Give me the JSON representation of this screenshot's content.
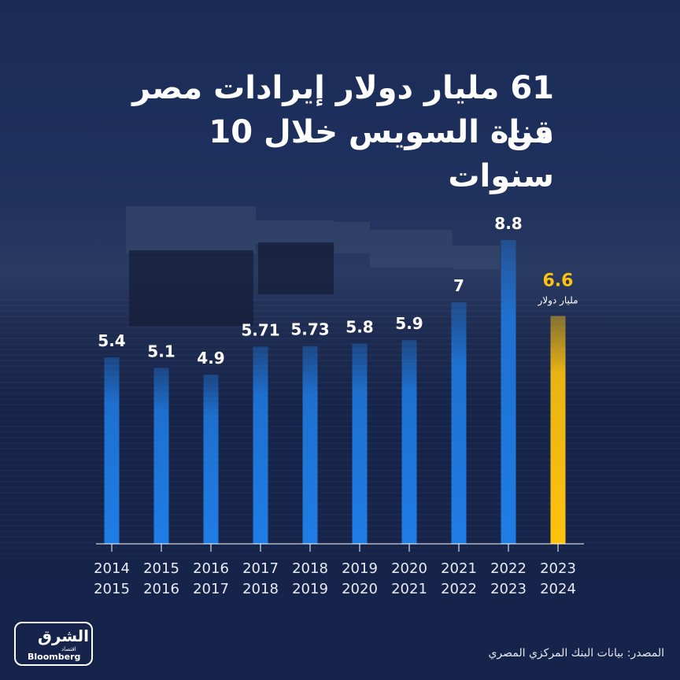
{
  "title_line1": "61 مليار دولار إيرادات مصر من",
  "title_line2": "قناة السويس خلال 10 سنوات",
  "source": "المصدر: بيانات البنك المركزي المصري",
  "logo": {
    "main": "الشرق",
    "sub": "اقتصاد",
    "partner": "Bloomberg"
  },
  "colors": {
    "bar": "#1f7de6",
    "highlight": "#ffc20e",
    "text": "#ffffff",
    "axis": "#ffffff",
    "tick_label": "#e8ebf3"
  },
  "chart_data": {
    "type": "bar",
    "categories": [
      [
        "2014",
        "2015"
      ],
      [
        "2015",
        "2016"
      ],
      [
        "2016",
        "2017"
      ],
      [
        "2017",
        "2018"
      ],
      [
        "2018",
        "2019"
      ],
      [
        "2019",
        "2020"
      ],
      [
        "2020",
        "2021"
      ],
      [
        "2021",
        "2022"
      ],
      [
        "2022",
        "2023"
      ],
      [
        "2023",
        "2024"
      ]
    ],
    "values": [
      5.4,
      5.1,
      4.9,
      5.71,
      5.73,
      5.8,
      5.9,
      7,
      8.8,
      6.6
    ],
    "labels": [
      "5.4",
      "5.1",
      "4.9",
      "5.71",
      "5.73",
      "5.8",
      "5.9",
      "7",
      "8.8",
      "6.6"
    ],
    "highlight_index": 9,
    "highlight_unit": "مليار دولار",
    "grid": false,
    "legend": "none"
  }
}
